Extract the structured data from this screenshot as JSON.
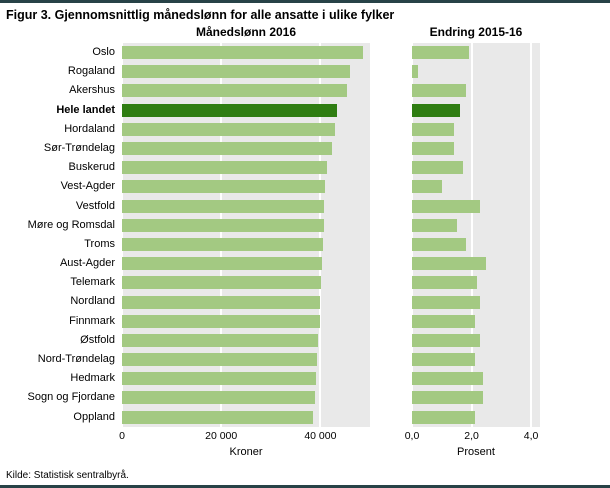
{
  "figure": {
    "title": "Figur 3. Gjennomsnittlig månedslønn for alle ansatte i ulike fylker",
    "source": "Kilde: Statistisk sentralbyrå."
  },
  "colors": {
    "bar_light_green": "#a3c982",
    "bar_dark_green_highlight": "#2f7d12",
    "plot_background": "#e9e9e9",
    "rule": "#274247"
  },
  "chart_data": [
    {
      "type": "bar",
      "orientation": "horizontal",
      "title": "Månedslønn 2016",
      "xlabel": "Kroner",
      "xlim": [
        0,
        50000
      ],
      "xticks": [
        0,
        20000,
        40000
      ],
      "xtick_labels": [
        "0",
        "20 000",
        "40 000"
      ],
      "grid": true,
      "highlight_category": "Hele landet",
      "categories": [
        "Oslo",
        "Rogaland",
        "Akershus",
        "Hele landet",
        "Hordaland",
        "Sør-Trøndelag",
        "Buskerud",
        "Vest-Agder",
        "Vestfold",
        "Møre og Romsdal",
        "Troms",
        "Aust-Agder",
        "Telemark",
        "Nordland",
        "Finnmark",
        "Østfold",
        "Nord-Trøndelag",
        "Hedmark",
        "Sogn og Fjordane",
        "Oppland"
      ],
      "values": [
        48500,
        46000,
        45400,
        43300,
        43000,
        42300,
        41300,
        41000,
        40800,
        40700,
        40600,
        40400,
        40100,
        40000,
        39900,
        39600,
        39300,
        39200,
        39000,
        38600
      ]
    },
    {
      "type": "bar",
      "orientation": "horizontal",
      "title": "Endring 2015-16",
      "xlabel": "Prosent",
      "xlim": [
        0,
        4.3
      ],
      "xticks": [
        0,
        2,
        4
      ],
      "xtick_labels": [
        "0,0",
        "2,0",
        "4,0"
      ],
      "grid": true,
      "highlight_category": "Hele landet",
      "categories": [
        "Oslo",
        "Rogaland",
        "Akershus",
        "Hele landet",
        "Hordaland",
        "Sør-Trøndelag",
        "Buskerud",
        "Vest-Agder",
        "Vestfold",
        "Møre og Romsdal",
        "Troms",
        "Aust-Agder",
        "Telemark",
        "Nordland",
        "Finnmark",
        "Østfold",
        "Nord-Trøndelag",
        "Hedmark",
        "Sogn og Fjordane",
        "Oppland"
      ],
      "values": [
        1.9,
        0.2,
        1.8,
        1.6,
        1.4,
        1.4,
        1.7,
        1.0,
        2.3,
        1.5,
        1.8,
        2.5,
        2.2,
        2.3,
        2.1,
        2.3,
        2.1,
        2.4,
        2.4,
        2.1
      ]
    }
  ]
}
